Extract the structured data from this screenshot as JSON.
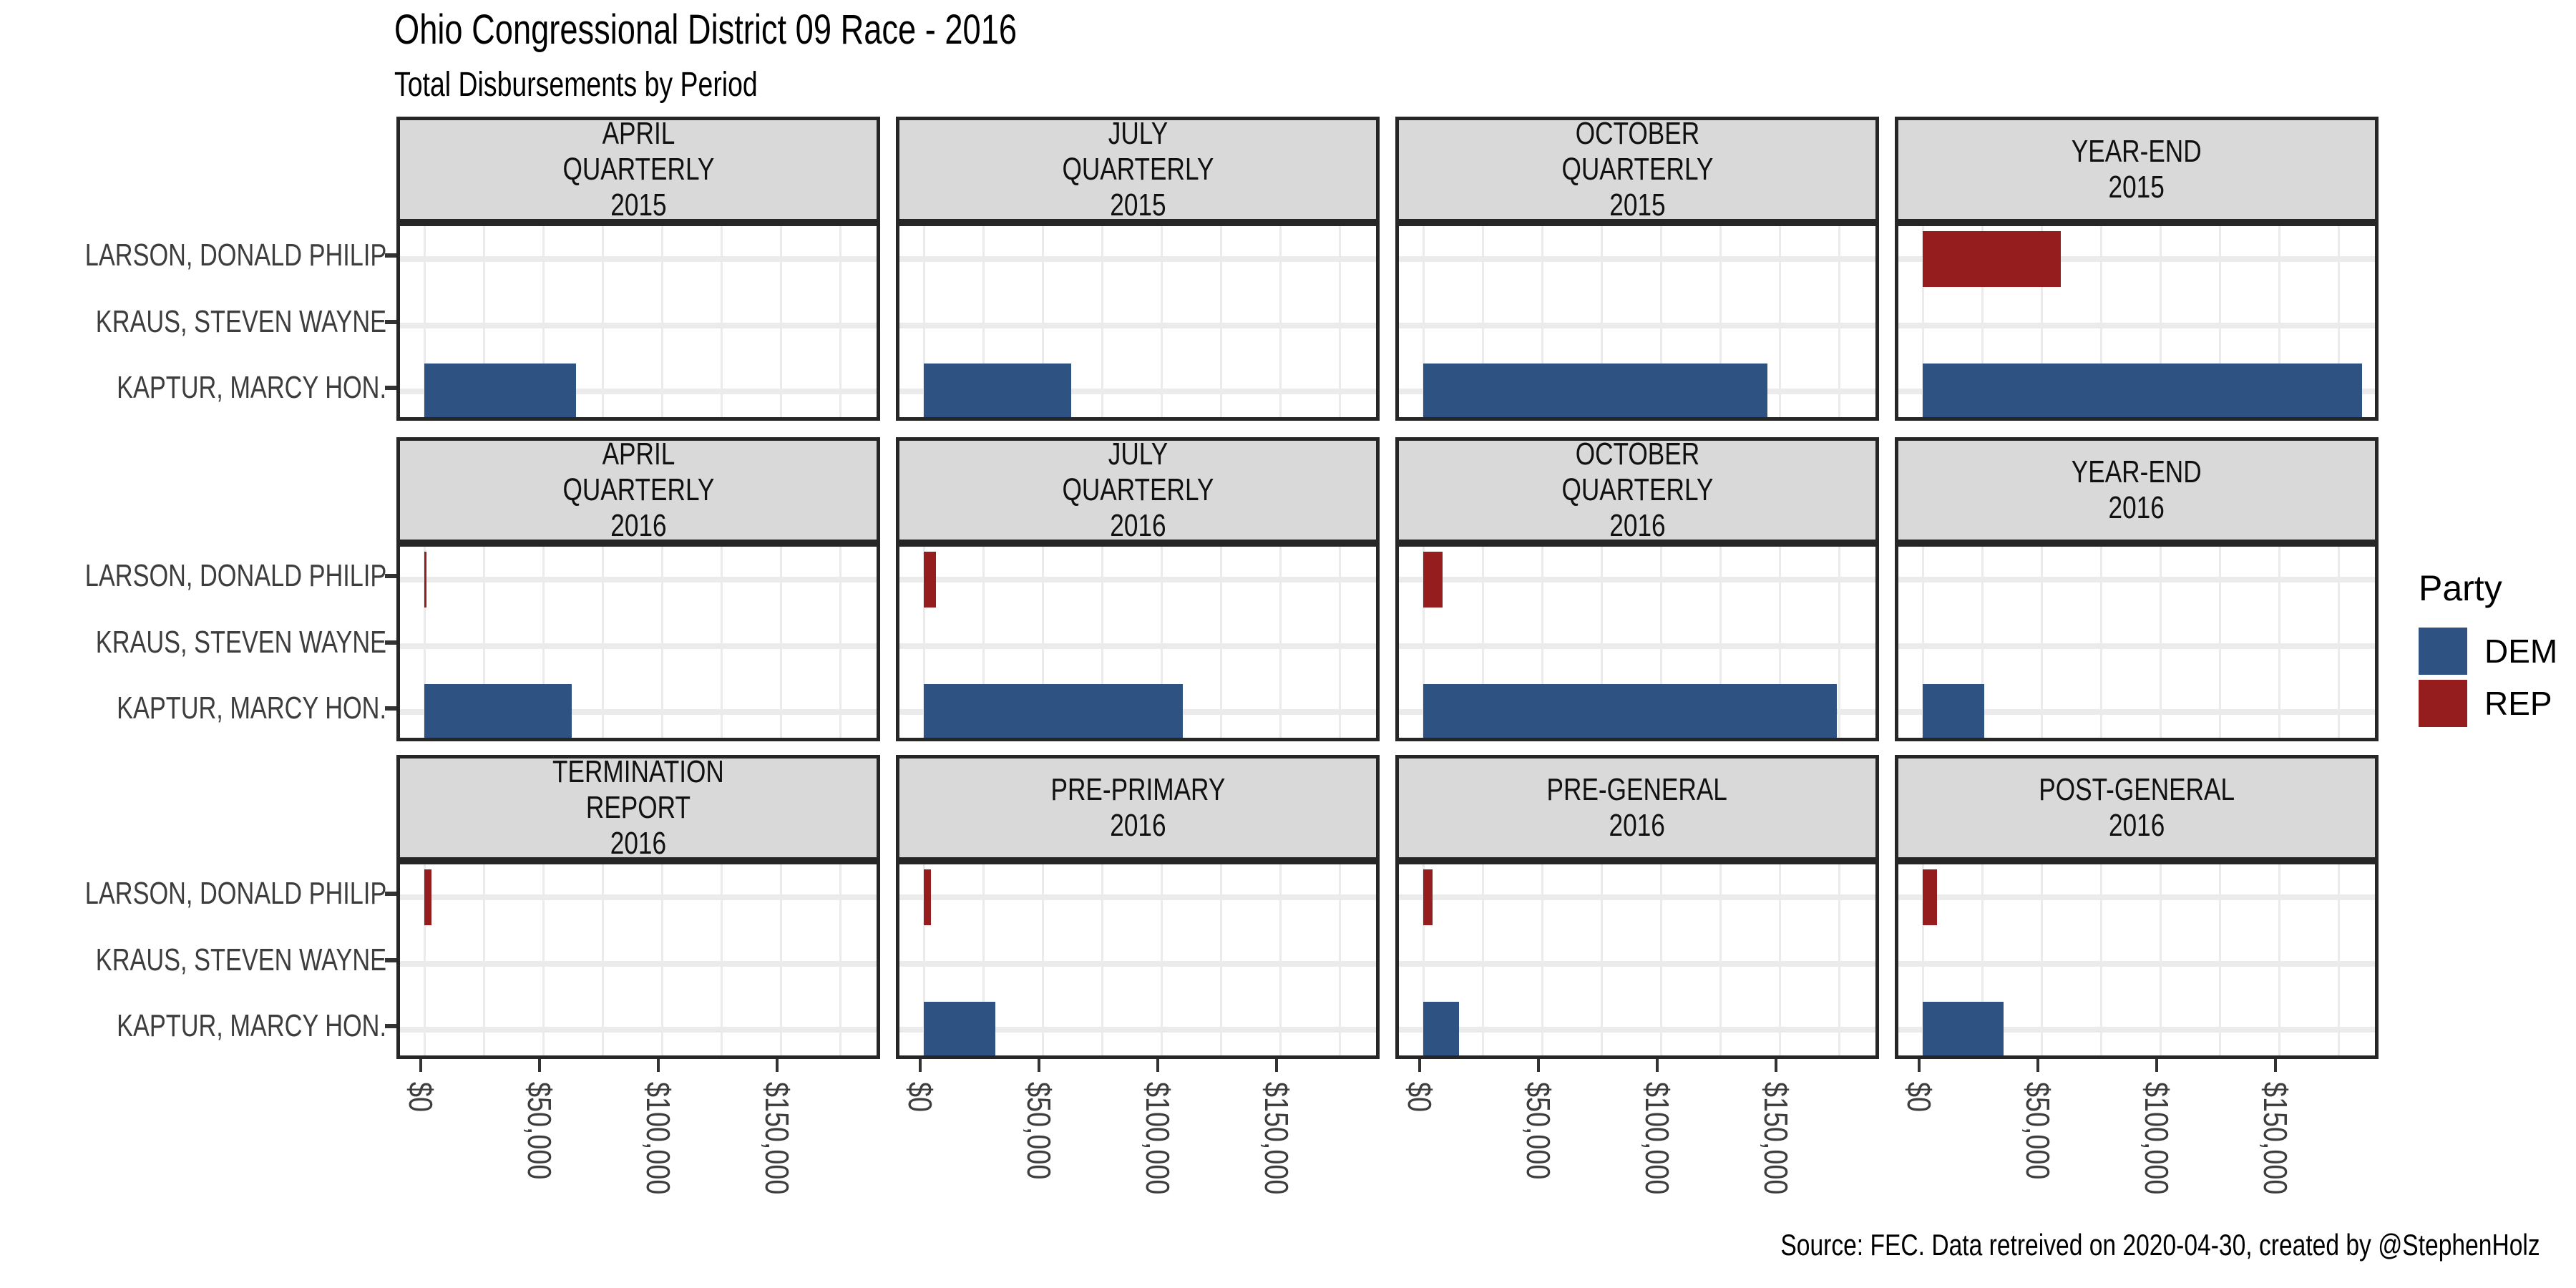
{
  "header": {
    "title": "Ohio Congressional District 09 Race - 2016",
    "subtitle": "Total Disbursements by Period"
  },
  "caption": {
    "text": "Source: FEC. Data retreived on 2020-04-30, created by @StephenHolz"
  },
  "legend": {
    "title": "Party",
    "items": [
      {
        "label": "DEM",
        "party": "DEM"
      },
      {
        "label": "REP",
        "party": "REP"
      }
    ]
  },
  "chart_data": {
    "type": "bar",
    "orientation": "horizontal",
    "title": "Ohio Congressional District 09 Race - 2016",
    "subtitle": "Total Disbursements by Period",
    "grid": {
      "rows": 3,
      "cols": 4
    },
    "colors": {
      "DEM": "#2E5282",
      "REP": "#961D1D"
    },
    "styles": {
      "strip_bg": "#D9D9D9",
      "panel_bg": "#FFFFFF",
      "grid_color": "#EBEBEB",
      "border_color": "#262626",
      "axis_text_color": "#3d3d3d"
    },
    "candidates": [
      {
        "name": "LARSON, DONALD PHILIP",
        "party": "REP"
      },
      {
        "name": "KRAUS, STEVEN WAYNE",
        "party": null
      },
      {
        "name": "KAPTUR, MARCY HON.",
        "party": "DEM"
      }
    ],
    "x_axis": {
      "tick_values": [
        0,
        50000,
        100000,
        150000
      ],
      "tick_labels": [
        "$0",
        "$50,000",
        "$100,000",
        "$150,000"
      ],
      "minor_grid_step": 25000,
      "xlim": [
        0,
        192000
      ]
    },
    "facets": [
      {
        "label_lines": [
          "APRIL",
          "QUARTERLY",
          "2015"
        ],
        "values": [
          0,
          0,
          64000
        ]
      },
      {
        "label_lines": [
          "JULY",
          "QUARTERLY",
          "2015"
        ],
        "values": [
          0,
          0,
          62000
        ]
      },
      {
        "label_lines": [
          "OCTOBER",
          "QUARTERLY",
          "2015"
        ],
        "values": [
          0,
          0,
          145000
        ]
      },
      {
        "label_lines": [
          "YEAR-END",
          "2015"
        ],
        "values": [
          58000,
          0,
          185000
        ]
      },
      {
        "label_lines": [
          "APRIL",
          "QUARTERLY",
          "2016"
        ],
        "values": [
          800,
          0,
          62000
        ]
      },
      {
        "label_lines": [
          "JULY",
          "QUARTERLY",
          "2016"
        ],
        "values": [
          5000,
          0,
          109000
        ]
      },
      {
        "label_lines": [
          "OCTOBER",
          "QUARTERLY",
          "2016"
        ],
        "values": [
          8000,
          0,
          174000
        ]
      },
      {
        "label_lines": [
          "YEAR-END",
          "2016"
        ],
        "values": [
          0,
          0,
          26000
        ]
      },
      {
        "label_lines": [
          "TERMINATION",
          "REPORT",
          "2016"
        ],
        "values": [
          3000,
          0,
          0
        ]
      },
      {
        "label_lines": [
          "PRE-PRIMARY",
          "2016"
        ],
        "values": [
          3000,
          0,
          30000
        ]
      },
      {
        "label_lines": [
          "PRE-GENERAL",
          "2016"
        ],
        "values": [
          4000,
          0,
          15000
        ]
      },
      {
        "label_lines": [
          "POST-GENERAL",
          "2016"
        ],
        "values": [
          6000,
          0,
          34000
        ]
      }
    ]
  }
}
